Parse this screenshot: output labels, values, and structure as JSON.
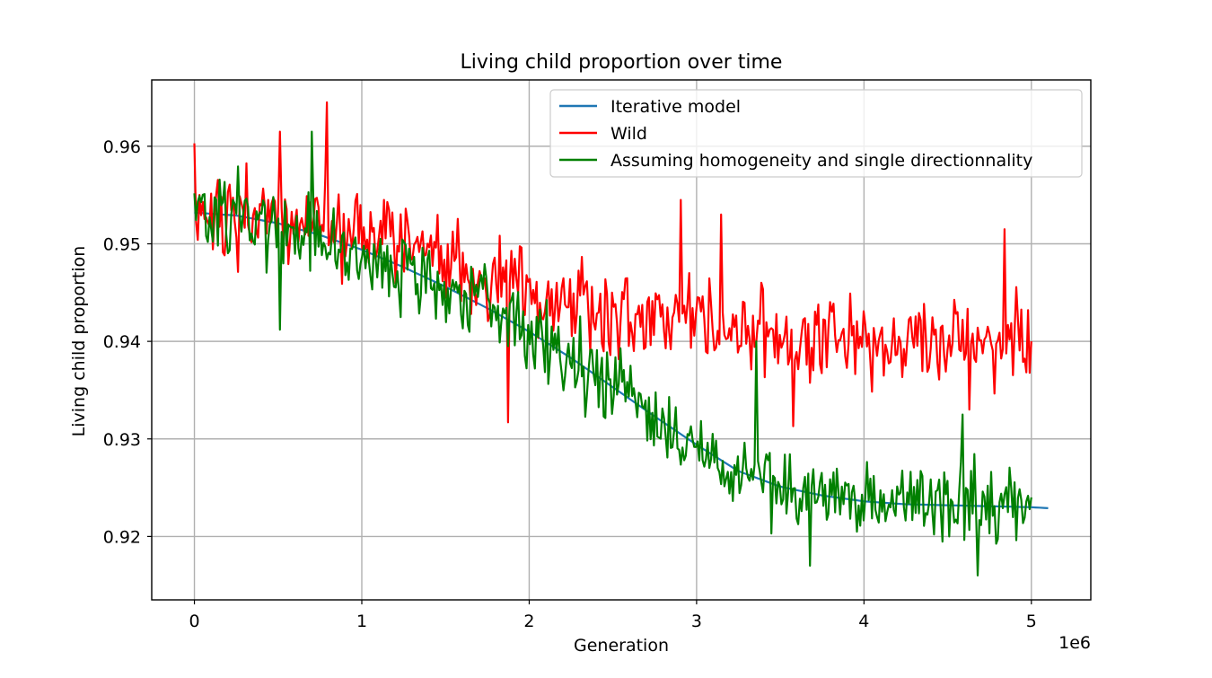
{
  "chart_data": {
    "type": "line",
    "title": "Living child proportion over time",
    "xlabel": "Generation",
    "ylabel": "Living child proportion",
    "x_offset_text": "1e6",
    "xlim": [
      -0.255,
      5.355
    ],
    "ylim": [
      0.9135,
      0.9668
    ],
    "x_ticks": [
      0,
      1,
      2,
      3,
      4,
      5
    ],
    "x_tick_labels": [
      "0",
      "1",
      "2",
      "3",
      "4",
      "5"
    ],
    "y_ticks": [
      0.92,
      0.93,
      0.94,
      0.95,
      0.96
    ],
    "y_tick_labels": [
      "0.92",
      "0.93",
      "0.94",
      "0.95",
      "0.96"
    ],
    "grid": true,
    "legend_position": "upper right",
    "series": [
      {
        "name": "Iterative model",
        "color": "#1f77b4",
        "style": "smooth",
        "x": [
          0,
          0.25,
          0.5,
          0.75,
          1.0,
          1.25,
          1.5,
          1.75,
          2.0,
          2.25,
          2.5,
          2.75,
          3.0,
          3.25,
          3.5,
          3.75,
          4.0,
          4.25,
          4.5,
          4.75,
          5.0,
          5.1
        ],
        "y": [
          0.9532,
          0.9529,
          0.9521,
          0.9509,
          0.9494,
          0.9476,
          0.9456,
          0.9434,
          0.941,
          0.9383,
          0.9353,
          0.9323,
          0.9294,
          0.9267,
          0.9251,
          0.9242,
          0.9236,
          0.9233,
          0.9232,
          0.9231,
          0.923,
          0.9229
        ]
      },
      {
        "name": "Wild",
        "color": "#ff0000",
        "style": "noisy",
        "x_start": 0,
        "x_end": 5.0,
        "n_points": 500,
        "noise_amplitude": 0.0034,
        "trend_x": [
          0,
          1.0,
          1.5,
          2.0,
          2.5,
          3.0,
          3.5,
          4.0,
          4.5,
          5.0
        ],
        "trend_y": [
          0.9535,
          0.951,
          0.9485,
          0.944,
          0.9432,
          0.942,
          0.9405,
          0.94,
          0.94,
          0.9405
        ],
        "peaks": [
          {
            "x": 0.0,
            "y": 0.9603
          },
          {
            "x": 0.79,
            "y": 0.9645
          },
          {
            "x": 0.51,
            "y": 0.9615
          },
          {
            "x": 1.87,
            "y": 0.9317
          },
          {
            "x": 2.91,
            "y": 0.9545
          },
          {
            "x": 3.15,
            "y": 0.953
          },
          {
            "x": 3.58,
            "y": 0.9313
          },
          {
            "x": 4.84,
            "y": 0.9515
          },
          {
            "x": 4.63,
            "y": 0.933
          },
          {
            "x": 5.0,
            "y": 0.94
          }
        ]
      },
      {
        "name": "Assuming homogeneity and single directionnality",
        "color": "#008000",
        "style": "noisy",
        "x_start": 0,
        "x_end": 5.0,
        "n_points": 500,
        "noise_amplitude": 0.003,
        "trend_x": [
          0,
          0.25,
          0.5,
          0.75,
          1.0,
          1.25,
          1.5,
          1.75,
          2.0,
          2.25,
          2.5,
          2.75,
          3.0,
          3.25,
          3.5,
          3.75,
          4.0,
          4.25,
          4.5,
          4.75,
          5.0
        ],
        "trend_y": [
          0.9535,
          0.953,
          0.9515,
          0.9505,
          0.949,
          0.9472,
          0.9455,
          0.9435,
          0.941,
          0.9382,
          0.9355,
          0.9325,
          0.9295,
          0.9268,
          0.9252,
          0.9243,
          0.9238,
          0.9235,
          0.9232,
          0.9231,
          0.923
        ],
        "peaks": [
          {
            "x": 0.7,
            "y": 0.9615
          },
          {
            "x": 0.51,
            "y": 0.9412
          },
          {
            "x": 3.45,
            "y": 0.9203
          },
          {
            "x": 3.68,
            "y": 0.917
          },
          {
            "x": 4.68,
            "y": 0.916
          },
          {
            "x": 4.59,
            "y": 0.9325
          },
          {
            "x": 3.36,
            "y": 0.94
          },
          {
            "x": 5.0,
            "y": 0.924
          }
        ]
      }
    ]
  }
}
